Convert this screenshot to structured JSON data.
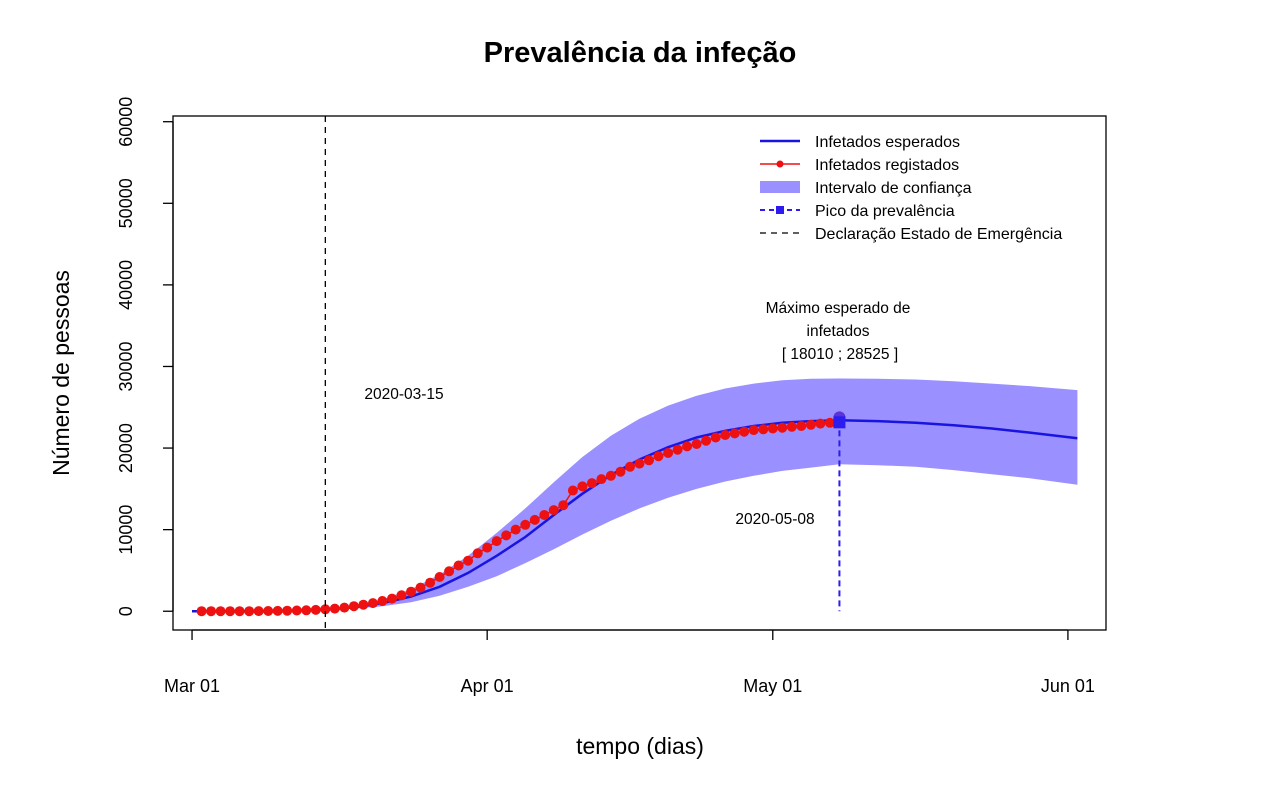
{
  "chart_data": {
    "type": "line",
    "title": "Prevalência da infeção",
    "xlabel": "tempo (dias)",
    "ylabel": "Número de pessoas",
    "x_ticks": [
      {
        "date": "2020-03-01",
        "label": "Mar 01"
      },
      {
        "date": "2020-04-01",
        "label": "Apr 01"
      },
      {
        "date": "2020-05-01",
        "label": "May 01"
      },
      {
        "date": "2020-06-01",
        "label": "Jun 01"
      }
    ],
    "y_ticks": [
      0,
      10000,
      20000,
      30000,
      40000,
      50000,
      60000
    ],
    "y_tick_labels": [
      "0",
      "10000",
      "20000",
      "30000",
      "40000",
      "50000",
      "60000"
    ],
    "xlim": [
      "2020-02-28",
      "2020-06-05"
    ],
    "ylim": [
      -2300,
      60700
    ],
    "grid": false,
    "legend_position": "top-right",
    "colors": {
      "expected": "#1a14e0",
      "registered": "#ee1111",
      "confidence": "#9a90ff",
      "peak": "#2c1cf0",
      "emergency": "#000000"
    },
    "legend": [
      {
        "label": "Infetados esperados",
        "style": "line"
      },
      {
        "label": "Infetados registados",
        "style": "line-point"
      },
      {
        "label": "Intervalo de confiança",
        "style": "band"
      },
      {
        "label": "Pico da prevalência",
        "style": "dashed-square"
      },
      {
        "label": "Declaração Estado de Emergência",
        "style": "dashed"
      }
    ],
    "series": [
      {
        "name": "Infetados esperados",
        "dates": [
          "2020-03-01",
          "2020-03-05",
          "2020-03-10",
          "2020-03-15",
          "2020-03-18",
          "2020-03-21",
          "2020-03-24",
          "2020-03-27",
          "2020-03-30",
          "2020-04-02",
          "2020-04-05",
          "2020-04-08",
          "2020-04-11",
          "2020-04-14",
          "2020-04-17",
          "2020-04-20",
          "2020-04-23",
          "2020-04-26",
          "2020-04-29",
          "2020-05-02",
          "2020-05-05",
          "2020-05-08",
          "2020-05-12",
          "2020-05-16",
          "2020-05-20",
          "2020-05-24",
          "2020-05-28",
          "2020-06-02"
        ],
        "values": [
          0,
          0,
          20,
          180,
          500,
          1000,
          1800,
          3000,
          4700,
          6800,
          9100,
          11800,
          14400,
          16700,
          18600,
          20100,
          21300,
          22100,
          22700,
          23100,
          23300,
          23400,
          23300,
          23100,
          22800,
          22400,
          21900,
          21200
        ]
      },
      {
        "name": "Infetados registados",
        "dates": [
          "2020-03-02",
          "2020-03-03",
          "2020-03-04",
          "2020-03-05",
          "2020-03-06",
          "2020-03-07",
          "2020-03-08",
          "2020-03-09",
          "2020-03-10",
          "2020-03-11",
          "2020-03-12",
          "2020-03-13",
          "2020-03-14",
          "2020-03-15",
          "2020-03-16",
          "2020-03-17",
          "2020-03-18",
          "2020-03-19",
          "2020-03-20",
          "2020-03-21",
          "2020-03-22",
          "2020-03-23",
          "2020-03-24",
          "2020-03-25",
          "2020-03-26",
          "2020-03-27",
          "2020-03-28",
          "2020-03-29",
          "2020-03-30",
          "2020-03-31",
          "2020-04-01",
          "2020-04-02",
          "2020-04-03",
          "2020-04-04",
          "2020-04-05",
          "2020-04-06",
          "2020-04-07",
          "2020-04-08",
          "2020-04-09",
          "2020-04-10",
          "2020-04-11",
          "2020-04-12",
          "2020-04-13",
          "2020-04-14",
          "2020-04-15",
          "2020-04-16",
          "2020-04-17",
          "2020-04-18",
          "2020-04-19",
          "2020-04-20",
          "2020-04-21",
          "2020-04-22",
          "2020-04-23",
          "2020-04-24",
          "2020-04-25",
          "2020-04-26",
          "2020-04-27",
          "2020-04-28",
          "2020-04-29",
          "2020-04-30",
          "2020-05-01",
          "2020-05-02",
          "2020-05-03",
          "2020-05-04",
          "2020-05-05",
          "2020-05-06",
          "2020-05-07",
          "2020-05-08"
        ],
        "values": [
          0,
          0,
          0,
          0,
          0,
          10,
          20,
          30,
          40,
          60,
          90,
          110,
          160,
          240,
          320,
          440,
          620,
          800,
          1000,
          1250,
          1550,
          1950,
          2400,
          2900,
          3500,
          4200,
          4900,
          5600,
          6200,
          7100,
          7800,
          8600,
          9300,
          10000,
          10600,
          11200,
          11800,
          12400,
          13000,
          14800,
          15300,
          15700,
          16200,
          16600,
          17100,
          17700,
          18100,
          18500,
          19000,
          19400,
          19800,
          20200,
          20500,
          20900,
          21300,
          21600,
          21800,
          22000,
          22200,
          22300,
          22400,
          22500,
          22600,
          22700,
          22850,
          23000,
          23100,
          23300
        ]
      },
      {
        "name": "Intervalo de confiança",
        "dates": [
          "2020-03-10",
          "2020-03-15",
          "2020-03-18",
          "2020-03-21",
          "2020-03-24",
          "2020-03-27",
          "2020-03-30",
          "2020-04-02",
          "2020-04-05",
          "2020-04-08",
          "2020-04-11",
          "2020-04-14",
          "2020-04-17",
          "2020-04-20",
          "2020-04-23",
          "2020-04-26",
          "2020-04-29",
          "2020-05-02",
          "2020-05-05",
          "2020-05-08",
          "2020-05-12",
          "2020-05-16",
          "2020-05-20",
          "2020-05-24",
          "2020-05-28",
          "2020-06-02"
        ],
        "upper": [
          30,
          250,
          700,
          1450,
          2700,
          4500,
          6800,
          9600,
          12600,
          15800,
          18900,
          21500,
          23600,
          25200,
          26400,
          27300,
          27900,
          28300,
          28500,
          28525,
          28500,
          28400,
          28200,
          27900,
          27600,
          27100
        ],
        "lower": [
          10,
          100,
          300,
          600,
          1100,
          1900,
          3000,
          4300,
          5900,
          7600,
          9400,
          11100,
          12600,
          13900,
          15000,
          15900,
          16600,
          17200,
          17600,
          18010,
          17900,
          17700,
          17300,
          16800,
          16300,
          15500
        ]
      }
    ],
    "peak": {
      "date": "2020-05-08",
      "value": 23400,
      "label": "2020-05-08"
    },
    "emergency": {
      "date": "2020-03-15",
      "label": "2020-03-15"
    },
    "annotations": {
      "max_line1": "Máximo esperado de",
      "max_line2": "infetados",
      "max_interval": "[ 18010 ; 28525 ]",
      "emergency_date": "2020-03-15",
      "peak_date": "2020-05-08"
    }
  }
}
